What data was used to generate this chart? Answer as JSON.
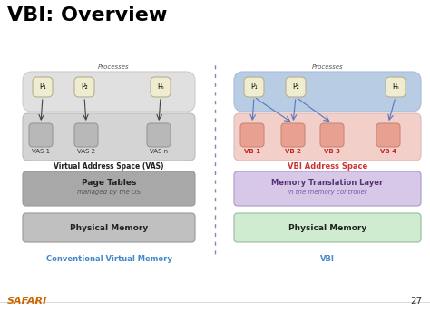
{
  "title": "VBI: Overview",
  "bg_color": "#ffffff",
  "title_color": "#000000",
  "title_fontsize": 16,
  "safari_color": "#cc6600",
  "page_number": "27",
  "left_label": "Conventional Virtual Memory",
  "right_label": "VBI",
  "label_color": "#4488cc",
  "left_vas_labels": [
    "VAS 1",
    "VAS 2",
    "VAS n"
  ],
  "right_vb_labels": [
    "VB 1",
    "VB 2",
    "VB 3",
    "VB 4"
  ],
  "left_vas_box_color": "#b8b8b8",
  "right_vb_box_color": "#e8a090",
  "left_proc_bg": "#e0e0e0",
  "right_proc_bg": "#b8cce4",
  "left_vas_area_color": "#d4d4d4",
  "right_vb_area_color": "#f2cfc8",
  "left_page_table_color": "#a8a8a8",
  "left_phys_mem_color": "#c0c0c0",
  "right_mtl_color": "#d8c8e8",
  "right_phys_mem_color": "#d0ecd0",
  "proc_box_color": "#f0ecd0",
  "proc_box_edge": "#b8b090",
  "divider_color": "#8888aa"
}
